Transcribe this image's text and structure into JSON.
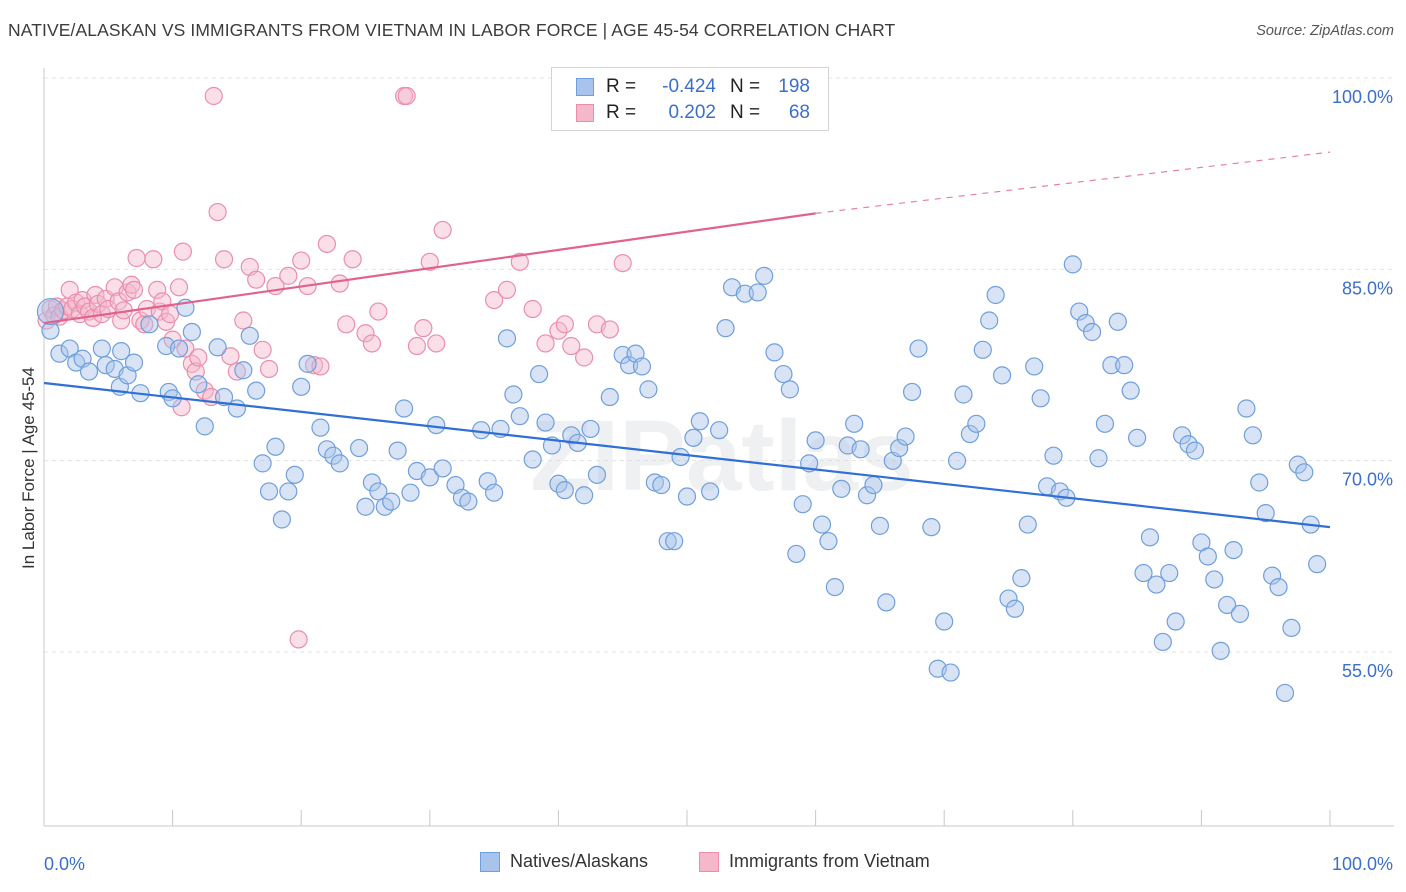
{
  "header": {
    "title": "NATIVE/ALASKAN VS IMMIGRANTS FROM VIETNAM IN LABOR FORCE | AGE 45-54 CORRELATION CHART",
    "source": "Source: ZipAtlas.com"
  },
  "watermark": "ZIPatlas",
  "legend_top": {
    "rows": [
      {
        "r_label": "R =",
        "r_value": "-0.424",
        "n_label": "N =",
        "n_value": "198"
      },
      {
        "r_label": "R =",
        "r_value": "0.202",
        "n_label": "N =",
        "n_value": "68"
      }
    ]
  },
  "colors": {
    "blue_fill": "#a9c4ec",
    "blue_stroke": "#6f9fdc",
    "blue_line": "#2f6fd6",
    "pink_fill": "#f5b8cb",
    "pink_stroke": "#ea8eac",
    "pink_line": "#e0628e",
    "tick_label": "#3b6fc9",
    "grid": "#e3e3e3"
  },
  "chart_data": {
    "type": "scatter",
    "title": "NATIVE/ALASKAN VS IMMIGRANTS FROM VIETNAM IN LABOR FORCE | AGE 45-54 CORRELATION CHART",
    "xlabel": "",
    "ylabel": "In Labor Force | Age 45-54",
    "xlim": [
      0,
      100
    ],
    "ylim": [
      40,
      100
    ],
    "x_tick_labels": [
      "0.0%",
      "100.0%"
    ],
    "y_ticks": [
      55,
      70,
      85,
      100
    ],
    "y_tick_labels": [
      "55.0%",
      "70.0%",
      "85.0%",
      "100.0%"
    ],
    "grid": true,
    "legend_position": "bottom",
    "series": [
      {
        "name": "Natives/Alaskans",
        "color": "#a9c4ec",
        "trend": {
          "x": [
            0,
            100
          ],
          "y": [
            77.5,
            66.2
          ],
          "style": "solid"
        },
        "points": [
          [
            0.5,
            81.6
          ],
          [
            1.2,
            79.8
          ],
          [
            2,
            80.2
          ],
          [
            2.5,
            79.1
          ],
          [
            3,
            79.4
          ],
          [
            3.5,
            78.4
          ],
          [
            4.5,
            80.2
          ],
          [
            4.8,
            78.9
          ],
          [
            5.5,
            78.6
          ],
          [
            5.9,
            77.2
          ],
          [
            6,
            80
          ],
          [
            6.5,
            78.1
          ],
          [
            7,
            79.1
          ],
          [
            7.5,
            76.7
          ],
          [
            8.2,
            82.1
          ],
          [
            9.5,
            80.4
          ],
          [
            9.7,
            76.8
          ],
          [
            10,
            76.3
          ],
          [
            10.5,
            80.2
          ],
          [
            11,
            83.4
          ],
          [
            11.5,
            81.5
          ],
          [
            12,
            77.4
          ],
          [
            12.5,
            74.1
          ],
          [
            13.5,
            80.3
          ],
          [
            14,
            76.4
          ],
          [
            15,
            75.5
          ],
          [
            15.5,
            78.5
          ],
          [
            16,
            81.2
          ],
          [
            16.5,
            76.9
          ],
          [
            17,
            71.2
          ],
          [
            17.5,
            69
          ],
          [
            18,
            72.5
          ],
          [
            18.5,
            66.8
          ],
          [
            19,
            69
          ],
          [
            19.5,
            70.3
          ],
          [
            20,
            77.2
          ],
          [
            20.5,
            79
          ],
          [
            21.5,
            74
          ],
          [
            22,
            72.3
          ],
          [
            22.5,
            71.8
          ],
          [
            23,
            71.2
          ],
          [
            24.5,
            72.4
          ],
          [
            25,
            67.8
          ],
          [
            25.5,
            69.7
          ],
          [
            26,
            69
          ],
          [
            26.5,
            67.8
          ],
          [
            27,
            68.2
          ],
          [
            27.5,
            72.2
          ],
          [
            28,
            75.5
          ],
          [
            28.5,
            68.9
          ],
          [
            29,
            70.6
          ],
          [
            30,
            70.1
          ],
          [
            30.5,
            74.2
          ],
          [
            31,
            70.8
          ],
          [
            32,
            69.5
          ],
          [
            32.5,
            68.5
          ],
          [
            33,
            68.2
          ],
          [
            34,
            73.8
          ],
          [
            34.5,
            69.8
          ],
          [
            35,
            68.9
          ],
          [
            35.5,
            73.9
          ],
          [
            36,
            81
          ],
          [
            36.5,
            76.6
          ],
          [
            37,
            74.9
          ],
          [
            38,
            71.5
          ],
          [
            38.5,
            78.2
          ],
          [
            39,
            74.4
          ],
          [
            39.5,
            72.6
          ],
          [
            40,
            69.6
          ],
          [
            40.5,
            69.1
          ],
          [
            41,
            73.4
          ],
          [
            41.5,
            72.8
          ],
          [
            42,
            68.7
          ],
          [
            42.5,
            73.9
          ],
          [
            43,
            70.3
          ],
          [
            44,
            76.4
          ],
          [
            45,
            79.7
          ],
          [
            45.5,
            78.9
          ],
          [
            46,
            79.8
          ],
          [
            46.5,
            78.8
          ],
          [
            47,
            77
          ],
          [
            47.5,
            69.7
          ],
          [
            48,
            69.5
          ],
          [
            48.5,
            65.1
          ],
          [
            49,
            65.1
          ],
          [
            49.5,
            71.7
          ],
          [
            50,
            68.6
          ],
          [
            50.5,
            73.2
          ],
          [
            51,
            74.5
          ],
          [
            51.8,
            69
          ],
          [
            52.5,
            73.8
          ],
          [
            53,
            81.8
          ],
          [
            53.5,
            85
          ],
          [
            54.5,
            84.5
          ],
          [
            55.5,
            84.6
          ],
          [
            56,
            85.9
          ],
          [
            56.8,
            79.9
          ],
          [
            57.5,
            78.2
          ],
          [
            58,
            77
          ],
          [
            58.5,
            64.1
          ],
          [
            59,
            68
          ],
          [
            59.5,
            71.2
          ],
          [
            60,
            73
          ],
          [
            60.5,
            66.4
          ],
          [
            61,
            65.1
          ],
          [
            61.5,
            61.5
          ],
          [
            62,
            69.2
          ],
          [
            62.5,
            72.6
          ],
          [
            63,
            74.3
          ],
          [
            63.5,
            72.3
          ],
          [
            64,
            68.7
          ],
          [
            64.5,
            69.5
          ],
          [
            65,
            66.3
          ],
          [
            65.5,
            60.3
          ],
          [
            66,
            71.4
          ],
          [
            66.5,
            72.4
          ],
          [
            67,
            73.3
          ],
          [
            67.5,
            76.8
          ],
          [
            68,
            80.2
          ],
          [
            69,
            66.2
          ],
          [
            69.5,
            55.1
          ],
          [
            70,
            58.8
          ],
          [
            70.5,
            54.8
          ],
          [
            71,
            71.4
          ],
          [
            71.5,
            76.6
          ],
          [
            72,
            73.5
          ],
          [
            72.5,
            74.3
          ],
          [
            73,
            80.1
          ],
          [
            73.5,
            82.4
          ],
          [
            74,
            84.4
          ],
          [
            74.5,
            78.1
          ],
          [
            75,
            60.6
          ],
          [
            75.5,
            59.8
          ],
          [
            76,
            62.2
          ],
          [
            76.5,
            66.4
          ],
          [
            77,
            78.8
          ],
          [
            77.5,
            76.3
          ],
          [
            78,
            69.4
          ],
          [
            78.5,
            71.8
          ],
          [
            79,
            69
          ],
          [
            79.5,
            68.5
          ],
          [
            80,
            86.8
          ],
          [
            80.5,
            83.1
          ],
          [
            81,
            82.2
          ],
          [
            81.5,
            81.5
          ],
          [
            82,
            71.6
          ],
          [
            82.5,
            74.3
          ],
          [
            83,
            78.9
          ],
          [
            83.5,
            82.3
          ],
          [
            84,
            78.9
          ],
          [
            84.5,
            76.9
          ],
          [
            85,
            73.2
          ],
          [
            85.5,
            62.6
          ],
          [
            86,
            65.4
          ],
          [
            86.5,
            61.7
          ],
          [
            87,
            57.2
          ],
          [
            87.5,
            62.6
          ],
          [
            88,
            58.8
          ],
          [
            88.5,
            73.4
          ],
          [
            89,
            72.7
          ],
          [
            89.5,
            72.2
          ],
          [
            90,
            65
          ],
          [
            90.5,
            63.9
          ],
          [
            91,
            62.1
          ],
          [
            91.5,
            56.5
          ],
          [
            92,
            60.1
          ],
          [
            92.5,
            64.4
          ],
          [
            93,
            59.4
          ],
          [
            93.5,
            75.5
          ],
          [
            94,
            73.4
          ],
          [
            94.5,
            69.7
          ],
          [
            95,
            67.3
          ],
          [
            95.5,
            62.4
          ],
          [
            96,
            61.5
          ],
          [
            96.5,
            53.2
          ],
          [
            97,
            58.3
          ],
          [
            97.5,
            71.1
          ],
          [
            98,
            70.5
          ],
          [
            98.5,
            66.4
          ],
          [
            99,
            63.3
          ]
        ]
      },
      {
        "name": "Immigrants from Vietnam",
        "color": "#f5b8cb",
        "trend": {
          "x": [
            0,
            60
          ],
          "y": [
            82.2,
            90.8
          ],
          "style": "solid",
          "dashed_extension": {
            "x": [
              60,
              100
            ],
            "y": [
              90.8,
              95.6
            ]
          }
        },
        "points": [
          [
            0.2,
            82.4
          ],
          [
            0.5,
            83.3
          ],
          [
            0.8,
            82.8
          ],
          [
            1,
            83.5
          ],
          [
            1.2,
            82.7
          ],
          [
            1.5,
            83.2
          ],
          [
            1.8,
            83.5
          ],
          [
            2,
            84.8
          ],
          [
            2.2,
            83.3
          ],
          [
            2.5,
            83.8
          ],
          [
            2.8,
            82.9
          ],
          [
            3,
            84
          ],
          [
            3.2,
            83.5
          ],
          [
            3.5,
            83.1
          ],
          [
            3.8,
            82.6
          ],
          [
            4,
            84.4
          ],
          [
            4.2,
            83.7
          ],
          [
            4.5,
            82.9
          ],
          [
            4.8,
            84.1
          ],
          [
            5,
            83.3
          ],
          [
            5.5,
            85
          ],
          [
            5.8,
            83.9
          ],
          [
            6,
            82.4
          ],
          [
            6.2,
            83.2
          ],
          [
            6.5,
            84.6
          ],
          [
            6.8,
            85.2
          ],
          [
            7,
            84.8
          ],
          [
            7.2,
            87.3
          ],
          [
            7.5,
            82.4
          ],
          [
            7.8,
            82.1
          ],
          [
            8,
            83.3
          ],
          [
            8.5,
            87.2
          ],
          [
            8.8,
            84.8
          ],
          [
            9,
            83.1
          ],
          [
            9.2,
            83.9
          ],
          [
            9.5,
            82.3
          ],
          [
            9.8,
            82.9
          ],
          [
            10,
            80.9
          ],
          [
            10.5,
            85
          ],
          [
            10.8,
            87.8
          ],
          [
            11,
            80.2
          ],
          [
            11.5,
            79
          ],
          [
            11.8,
            78.4
          ],
          [
            12,
            79.5
          ],
          [
            12.5,
            76.9
          ],
          [
            13,
            76.4
          ],
          [
            13.5,
            90.9
          ],
          [
            14,
            87.2
          ],
          [
            14.5,
            79.6
          ],
          [
            15,
            78.4
          ],
          [
            15.5,
            82.4
          ],
          [
            16,
            86.6
          ],
          [
            16.5,
            85.6
          ],
          [
            17,
            80.1
          ],
          [
            17.5,
            78.6
          ],
          [
            18,
            85.1
          ],
          [
            19,
            85.9
          ],
          [
            20,
            87.1
          ],
          [
            20.5,
            85.1
          ],
          [
            21,
            78.9
          ],
          [
            21.5,
            78.8
          ],
          [
            22,
            88.4
          ],
          [
            23,
            85.3
          ],
          [
            23.5,
            82.1
          ],
          [
            24,
            87.2
          ],
          [
            25,
            81.4
          ],
          [
            25.5,
            80.6
          ],
          [
            26,
            83.1
          ],
          [
            28,
            100
          ],
          [
            28.2,
            100
          ],
          [
            29,
            80.4
          ],
          [
            29.5,
            81.8
          ],
          [
            30,
            87
          ],
          [
            30.5,
            80.6
          ],
          [
            31,
            89.5
          ],
          [
            35,
            84
          ],
          [
            36,
            84.8
          ],
          [
            37,
            87
          ],
          [
            38,
            83.3
          ],
          [
            39,
            80.6
          ],
          [
            40,
            81.6
          ],
          [
            40.5,
            82.1
          ],
          [
            41,
            80.4
          ],
          [
            42,
            79.5
          ],
          [
            43,
            82.1
          ],
          [
            44,
            81.7
          ],
          [
            45,
            86.9
          ],
          [
            13.2,
            100
          ],
          [
            19.8,
            57.4
          ],
          [
            10.7,
            75.6
          ]
        ]
      }
    ]
  },
  "legend_bottom": {
    "items": [
      "Natives/Alaskans",
      "Immigrants from Vietnam"
    ]
  }
}
